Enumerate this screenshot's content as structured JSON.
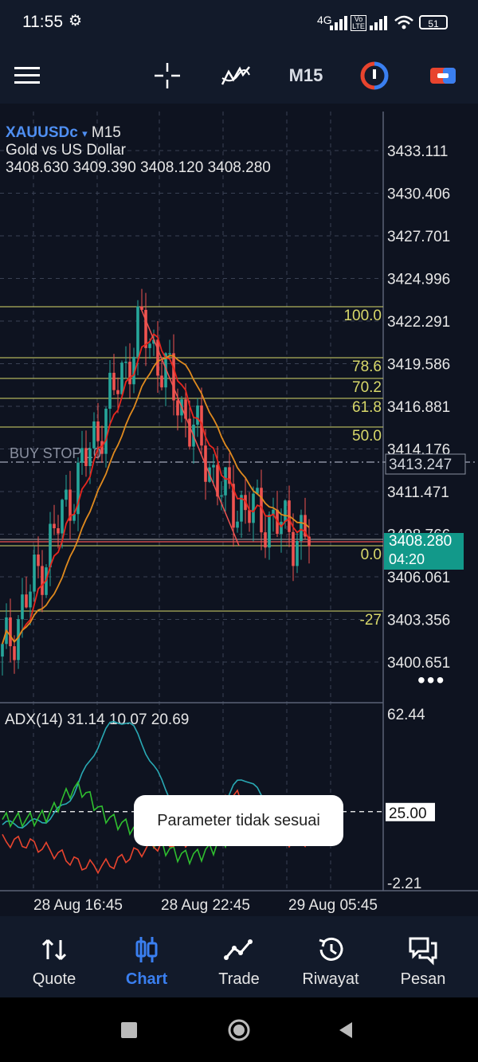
{
  "status_bar": {
    "time": "11:55",
    "network": "4G",
    "volte": "Vo LTE",
    "battery": "51"
  },
  "toolbar": {
    "timeframe": "M15"
  },
  "chart_header": {
    "symbol": "XAUUSDc",
    "dropdown": "▾",
    "timeframe": "M15",
    "description": "Gold vs US Dollar",
    "ohlc": "3408.630 3409.390 3408.120 3408.280"
  },
  "price_axis": [
    "3433.111",
    "3430.406",
    "3427.701",
    "3424.996",
    "3422.291",
    "3419.586",
    "3416.881",
    "3414.176",
    "3411.471",
    "3408.766",
    "3406.061",
    "3403.356",
    "3400.651"
  ],
  "current_price": {
    "price": "3408.280",
    "countdown": "04:20"
  },
  "buy_stop": {
    "label": "BUY STOP 10",
    "price": "3413.247"
  },
  "fib_levels": [
    "100.0",
    "78.6",
    "70.2",
    "61.8",
    "50.0",
    "0.0",
    "-27"
  ],
  "indicator": {
    "label": "ADX(14) 31.14 10.07 20.69",
    "axis": [
      "62.44",
      "25.00",
      "-2.21"
    ],
    "colors": {
      "adx": "#29a9b4",
      "plus_di": "#2fbe2f",
      "minus_di": "#e8442e"
    }
  },
  "time_axis": [
    "28 Aug 16:45",
    "28 Aug 22:45",
    "29 Aug 05:45"
  ],
  "toast": "Parameter tidak sesuai",
  "bottom_nav": [
    {
      "label": "Quote",
      "icon": "quote-arrows-icon",
      "active": false
    },
    {
      "label": "Chart",
      "icon": "candlestick-icon",
      "active": true
    },
    {
      "label": "Trade",
      "icon": "trade-line-icon",
      "active": false
    },
    {
      "label": "Riwayat",
      "icon": "history-icon",
      "active": false
    },
    {
      "label": "Pesan",
      "icon": "messages-icon",
      "active": false
    }
  ],
  "colors": {
    "background": "#0e1320",
    "grid": "#3a4154",
    "bull": "#26a69a",
    "bear": "#ef5350",
    "ma_fast": "#e8271e",
    "ma_slow": "#e08a1e",
    "fib": "#d8d86a",
    "accent": "#3a7ff0"
  }
}
